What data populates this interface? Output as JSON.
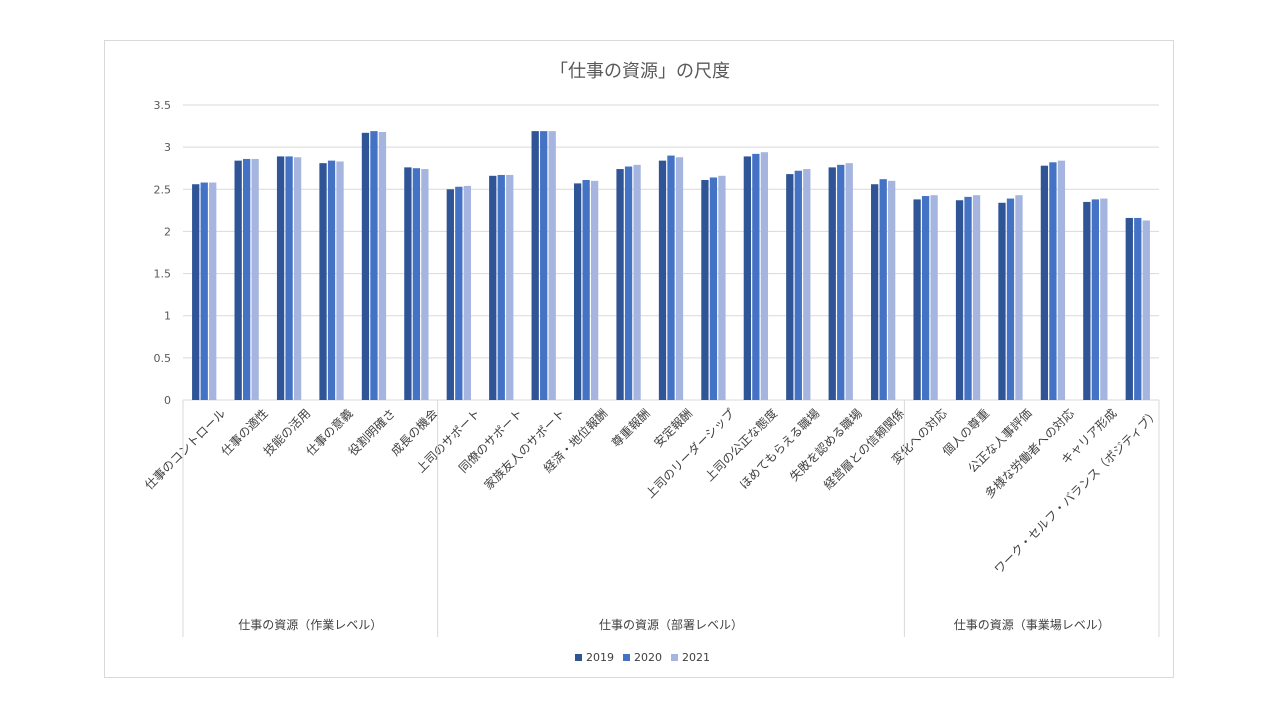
{
  "chart_data": {
    "type": "bar",
    "title": "「仕事の資源」の尺度",
    "ylim": [
      0,
      3.5
    ],
    "yticks": [
      "0",
      "0.5",
      "1",
      "1.5",
      "2",
      "2.5",
      "3",
      "3.5"
    ],
    "categories": [
      "仕事のコントロール",
      "仕事の適性",
      "技能の活用",
      "仕事の意義",
      "役割明確さ",
      "成長の機会",
      "上司のサポート",
      "同僚のサポート",
      "家族友人のサポート",
      "経済・地位報酬",
      "尊重報酬",
      "安定報酬",
      "上司のリーダーシップ",
      "上司の公正な態度",
      "ほめてもらえる職場",
      "失敗を認める職場",
      "経営層との信頼関係",
      "変化への対応",
      "個人の尊重",
      "公正な人事評価",
      "多様な労働者への対応",
      "キャリア形成",
      "ワーク・セルフ・バランス（ポジティブ）"
    ],
    "groups": [
      {
        "label": "仕事の資源（作業レベル）",
        "count": 6
      },
      {
        "label": "仕事の資源（部署レベル）",
        "count": 11
      },
      {
        "label": "仕事の資源（事業場レベル）",
        "count": 6
      }
    ],
    "series": [
      {
        "name": "2019",
        "color": "#2f5597",
        "values": [
          2.56,
          2.84,
          2.89,
          2.81,
          3.17,
          2.76,
          2.5,
          2.66,
          3.19,
          2.57,
          2.74,
          2.84,
          2.61,
          2.89,
          2.68,
          2.76,
          2.56,
          2.38,
          2.37,
          2.34,
          2.78,
          2.35,
          2.16
        ]
      },
      {
        "name": "2020",
        "color": "#4472c4",
        "values": [
          2.58,
          2.86,
          2.89,
          2.84,
          3.19,
          2.75,
          2.53,
          2.67,
          3.19,
          2.61,
          2.77,
          2.9,
          2.64,
          2.92,
          2.72,
          2.79,
          2.62,
          2.42,
          2.41,
          2.39,
          2.82,
          2.38,
          2.16
        ]
      },
      {
        "name": "2021",
        "color": "#a5b5e0",
        "values": [
          2.58,
          2.86,
          2.88,
          2.83,
          3.18,
          2.74,
          2.54,
          2.67,
          3.19,
          2.6,
          2.79,
          2.88,
          2.66,
          2.94,
          2.74,
          2.81,
          2.6,
          2.43,
          2.43,
          2.43,
          2.84,
          2.39,
          2.13
        ]
      }
    ],
    "grid": true,
    "legend_position": "bottom"
  }
}
